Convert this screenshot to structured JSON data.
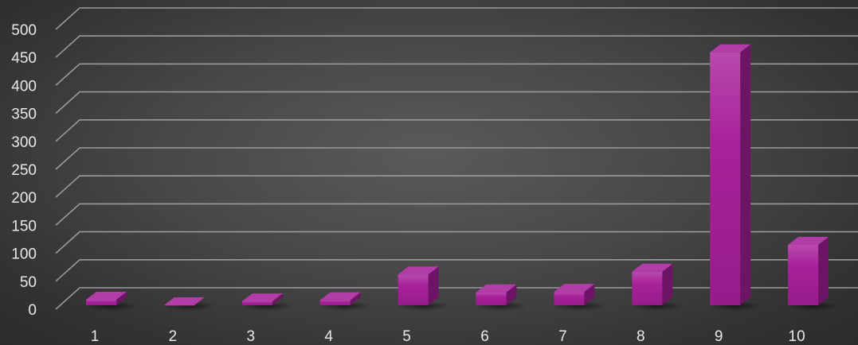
{
  "chart_data": {
    "type": "bar",
    "title": "",
    "xlabel": "",
    "ylabel": "",
    "categories": [
      "1",
      "2",
      "3",
      "4",
      "5",
      "6",
      "7",
      "8",
      "9",
      "10"
    ],
    "series": [
      {
        "values": [
          10,
          0,
          7,
          9,
          55,
          23,
          24,
          60,
          452,
          108
        ]
      }
    ],
    "ylim": [
      0,
      500
    ],
    "yticks": [
      "0",
      "50",
      "100",
      "150",
      "200",
      "250",
      "300",
      "350",
      "400",
      "450",
      "500"
    ],
    "grid": true,
    "legend": "none",
    "style": "3d-column",
    "colors": {
      "bar_front": "#a8229a",
      "bar_side": "#6e1466",
      "bar_top": "#b23ca8",
      "grid": "#9a9a9a",
      "text": "#e8e8e8",
      "background": "#4a4a4a"
    }
  }
}
